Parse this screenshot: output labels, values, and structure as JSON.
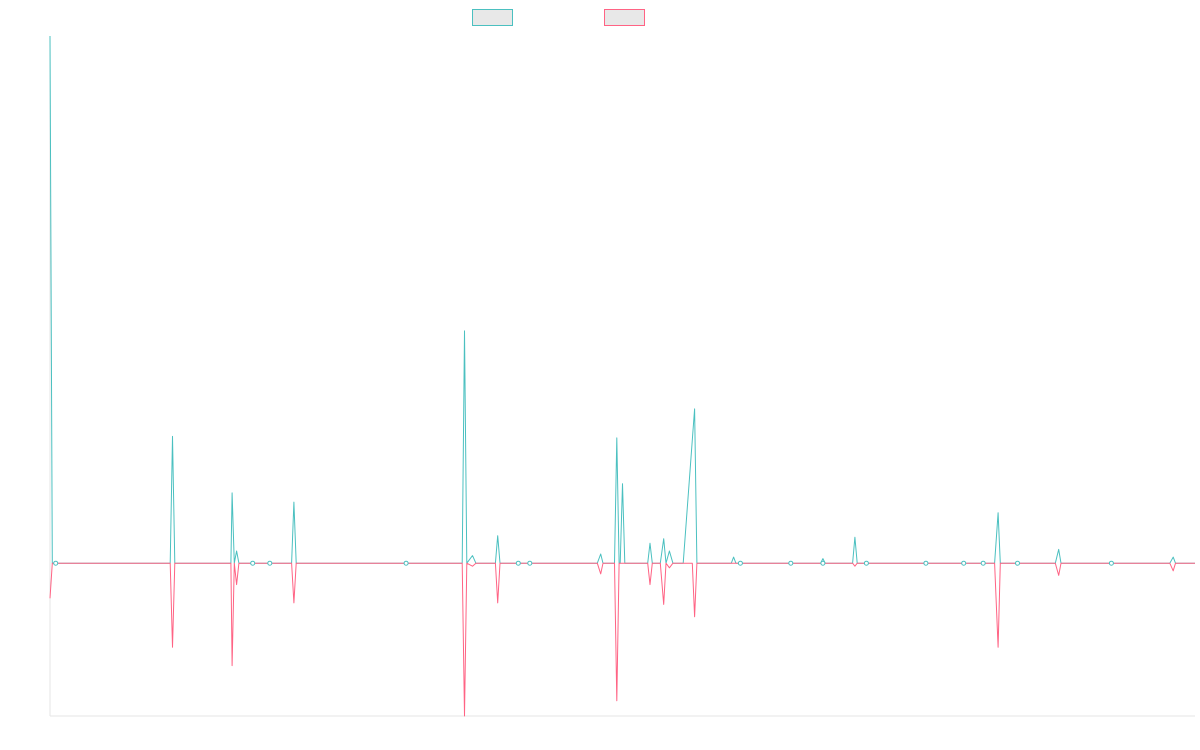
{
  "chart_data": {
    "type": "line",
    "title": "",
    "xlabel": "",
    "ylabel": "",
    "legend_position": "top-center",
    "grid": false,
    "ylim": [
      -100,
      345
    ],
    "xlim": [
      0,
      100
    ],
    "series": [
      {
        "color": "#4bc0c0",
        "points": [
          [
            0,
            345
          ],
          [
            0.2,
            0
          ],
          [
            10.5,
            0
          ],
          [
            10.7,
            83
          ],
          [
            10.9,
            0
          ],
          [
            15.8,
            0
          ],
          [
            15.9,
            46
          ],
          [
            16.1,
            0
          ],
          [
            16.3,
            8
          ],
          [
            16.5,
            0
          ],
          [
            21.1,
            0
          ],
          [
            21.3,
            40
          ],
          [
            21.5,
            0
          ],
          [
            35.5,
            0
          ],
          [
            35.9,
            0
          ],
          [
            36,
            0
          ],
          [
            36.2,
            152
          ],
          [
            36.4,
            0
          ],
          [
            36.9,
            5
          ],
          [
            37.2,
            0
          ],
          [
            38.9,
            0
          ],
          [
            39.1,
            18
          ],
          [
            39.3,
            0
          ],
          [
            47.8,
            0
          ],
          [
            48.1,
            6
          ],
          [
            48.3,
            0
          ],
          [
            49.3,
            0
          ],
          [
            49.5,
            82
          ],
          [
            49.7,
            0
          ],
          [
            49.8,
            0
          ],
          [
            50,
            52
          ],
          [
            50.2,
            0
          ],
          [
            52.2,
            0
          ],
          [
            52.4,
            13
          ],
          [
            52.6,
            0
          ],
          [
            53.3,
            0
          ],
          [
            53.6,
            16
          ],
          [
            53.8,
            0
          ],
          [
            54.1,
            8
          ],
          [
            54.4,
            0
          ],
          [
            55.3,
            0
          ],
          [
            56.3,
            101
          ],
          [
            56.5,
            0
          ],
          [
            59.5,
            0
          ],
          [
            59.7,
            4
          ],
          [
            59.9,
            0
          ],
          [
            67.3,
            0
          ],
          [
            67.5,
            3
          ],
          [
            67.7,
            0
          ],
          [
            70.1,
            0
          ],
          [
            70.3,
            17
          ],
          [
            70.5,
            0
          ],
          [
            82.5,
            0
          ],
          [
            82.8,
            33
          ],
          [
            83,
            0
          ],
          [
            87.8,
            0
          ],
          [
            88.1,
            9
          ],
          [
            88.3,
            0
          ],
          [
            97.8,
            0
          ],
          [
            98.1,
            4
          ],
          [
            98.3,
            0
          ],
          [
            100,
            0
          ]
        ]
      },
      {
        "color": "#ff6384",
        "points": [
          [
            0,
            -23
          ],
          [
            0.2,
            0
          ],
          [
            10.5,
            0
          ],
          [
            10.7,
            -55
          ],
          [
            10.9,
            0
          ],
          [
            15.8,
            0
          ],
          [
            15.9,
            -67
          ],
          [
            16.1,
            0
          ],
          [
            16.3,
            -14
          ],
          [
            16.5,
            0
          ],
          [
            21.1,
            0
          ],
          [
            21.3,
            -26
          ],
          [
            21.5,
            0
          ],
          [
            35.5,
            0
          ],
          [
            35.9,
            0
          ],
          [
            36,
            0
          ],
          [
            36.2,
            -100
          ],
          [
            36.4,
            0
          ],
          [
            36.9,
            -2
          ],
          [
            37.2,
            0
          ],
          [
            38.9,
            0
          ],
          [
            39.1,
            -26
          ],
          [
            39.3,
            0
          ],
          [
            47.8,
            0
          ],
          [
            48.1,
            -7
          ],
          [
            48.3,
            0
          ],
          [
            49.3,
            0
          ],
          [
            49.5,
            -90
          ],
          [
            49.7,
            0
          ],
          [
            52.2,
            0
          ],
          [
            52.4,
            -14
          ],
          [
            52.6,
            0
          ],
          [
            53.3,
            0
          ],
          [
            53.6,
            -27
          ],
          [
            53.8,
            0
          ],
          [
            54.1,
            -3
          ],
          [
            54.4,
            0
          ],
          [
            56.1,
            0
          ],
          [
            56.3,
            -35
          ],
          [
            56.5,
            0
          ],
          [
            70.1,
            0
          ],
          [
            70.3,
            -2
          ],
          [
            70.5,
            0
          ],
          [
            82.5,
            0
          ],
          [
            82.8,
            -55
          ],
          [
            83,
            0
          ],
          [
            87.8,
            0
          ],
          [
            88.1,
            -8
          ],
          [
            88.3,
            0
          ],
          [
            97.8,
            0
          ],
          [
            98.1,
            -5
          ],
          [
            98.3,
            0
          ],
          [
            100,
            0
          ]
        ]
      }
    ],
    "markers": [
      {
        "x": 0.5,
        "y": 0
      },
      {
        "x": 17.7,
        "y": 0
      },
      {
        "x": 19.2,
        "y": 0
      },
      {
        "x": 31.1,
        "y": 0
      },
      {
        "x": 40.9,
        "y": 0
      },
      {
        "x": 41.9,
        "y": 0
      },
      {
        "x": 60.3,
        "y": 0
      },
      {
        "x": 64.7,
        "y": 0
      },
      {
        "x": 67.5,
        "y": 0
      },
      {
        "x": 71.3,
        "y": 0
      },
      {
        "x": 76.5,
        "y": 0
      },
      {
        "x": 79.8,
        "y": 0
      },
      {
        "x": 81.5,
        "y": 0
      },
      {
        "x": 84.5,
        "y": 0
      },
      {
        "x": 92.7,
        "y": 0
      }
    ]
  }
}
